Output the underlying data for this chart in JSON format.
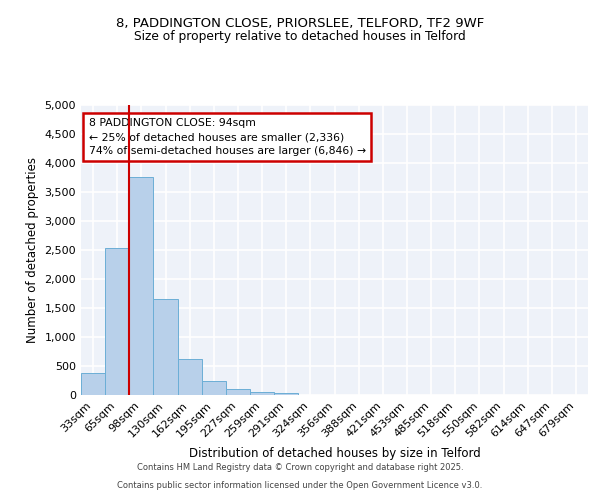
{
  "title1": "8, PADDINGTON CLOSE, PRIORSLEE, TELFORD, TF2 9WF",
  "title2": "Size of property relative to detached houses in Telford",
  "xlabel": "Distribution of detached houses by size in Telford",
  "ylabel": "Number of detached properties",
  "categories": [
    "33sqm",
    "65sqm",
    "98sqm",
    "130sqm",
    "162sqm",
    "195sqm",
    "227sqm",
    "259sqm",
    "291sqm",
    "324sqm",
    "356sqm",
    "388sqm",
    "421sqm",
    "453sqm",
    "485sqm",
    "518sqm",
    "550sqm",
    "582sqm",
    "614sqm",
    "647sqm",
    "679sqm"
  ],
  "values": [
    380,
    2530,
    3760,
    1650,
    620,
    240,
    105,
    45,
    30,
    0,
    0,
    0,
    0,
    0,
    0,
    0,
    0,
    0,
    0,
    0,
    0
  ],
  "bar_color": "#b8d0ea",
  "bar_edge_color": "#6baed6",
  "red_line_index": 2,
  "property_label": "8 PADDINGTON CLOSE: 94sqm",
  "annotation_line1": "← 25% of detached houses are smaller (2,336)",
  "annotation_line2": "74% of semi-detached houses are larger (6,846) →",
  "annotation_box_color": "#ffffff",
  "annotation_border_color": "#cc0000",
  "vline_color": "#cc0000",
  "background_color": "#eef2f9",
  "grid_color": "#ffffff",
  "fig_background": "#ffffff",
  "ylim": [
    0,
    5000
  ],
  "yticks": [
    0,
    500,
    1000,
    1500,
    2000,
    2500,
    3000,
    3500,
    4000,
    4500,
    5000
  ],
  "footer1": "Contains HM Land Registry data © Crown copyright and database right 2025.",
  "footer2": "Contains public sector information licensed under the Open Government Licence v3.0."
}
